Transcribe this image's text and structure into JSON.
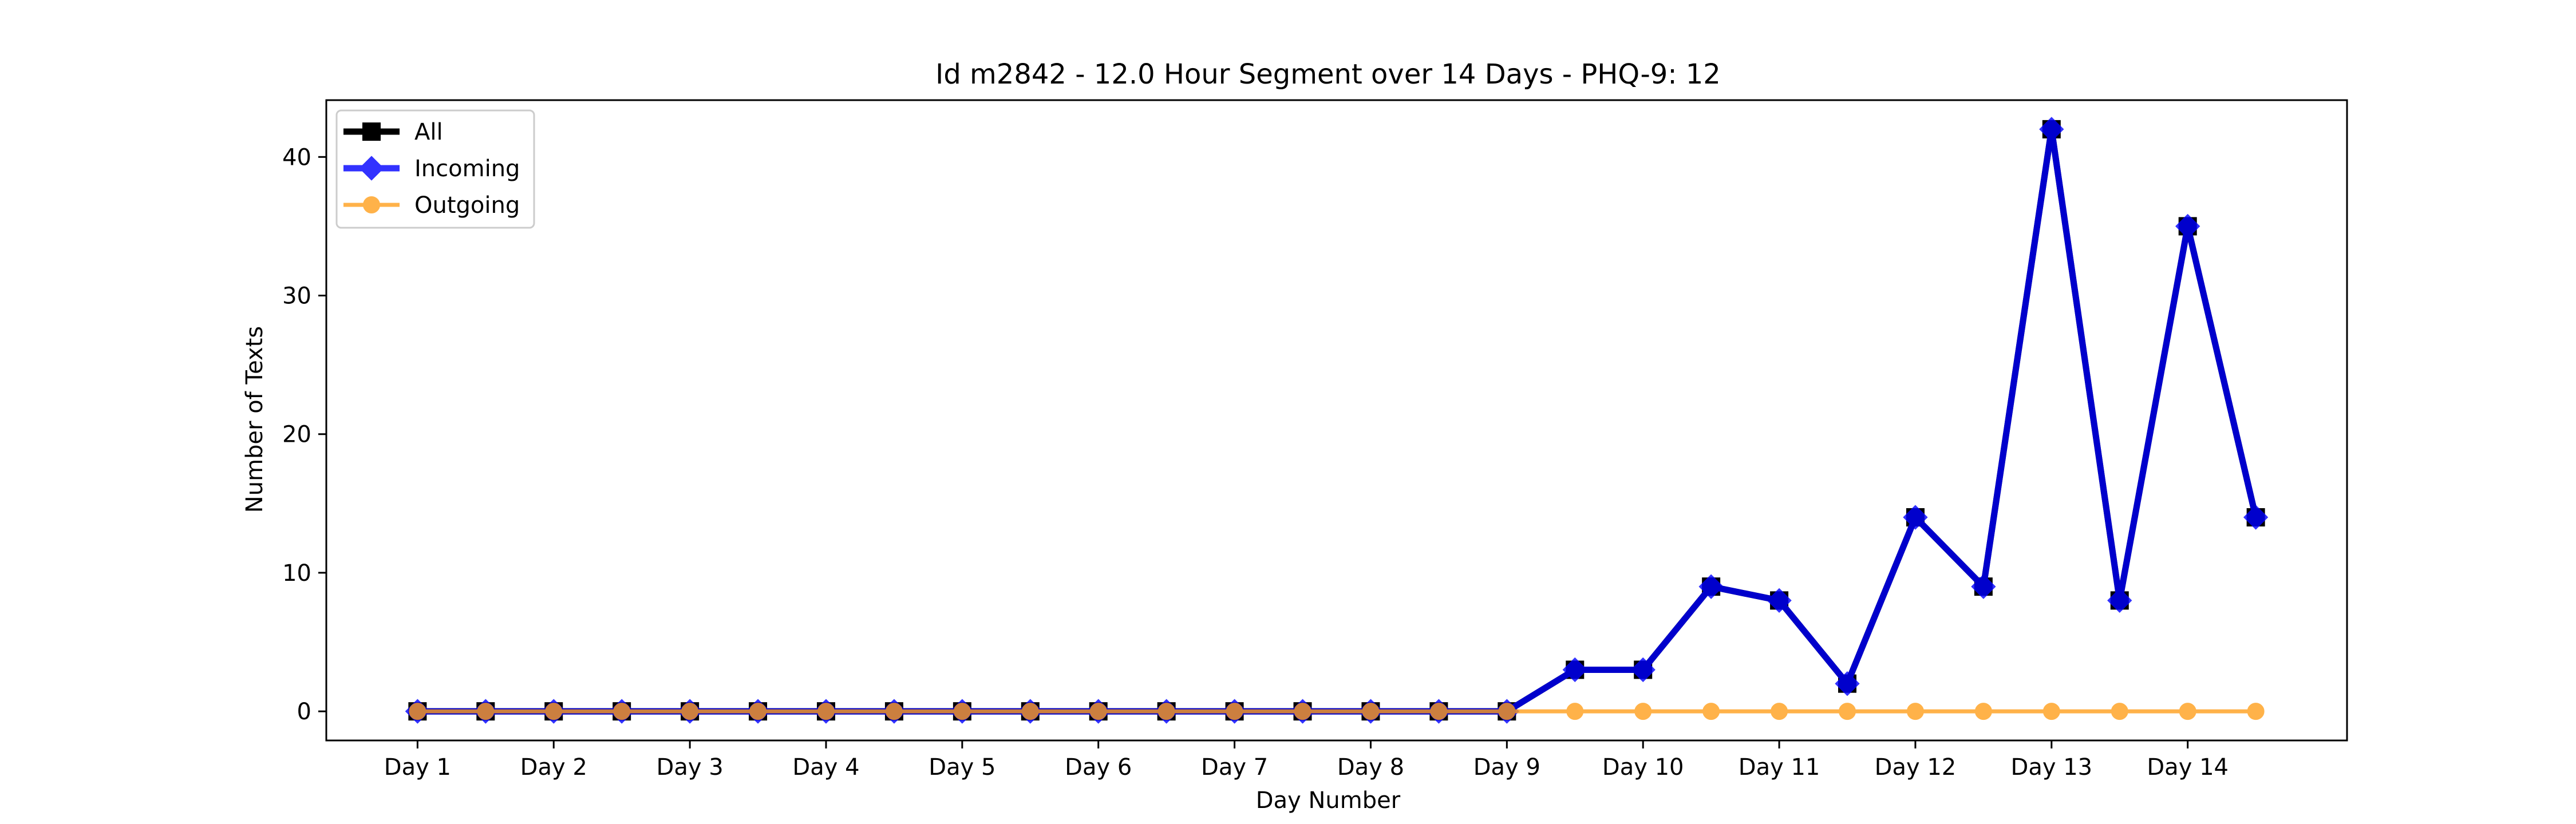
{
  "chart_data": {
    "type": "line",
    "title": "Id m2842 - 12.0 Hour Segment over 14 Days - PHQ-9: 12",
    "xlabel": "Day Number",
    "ylabel": "Number of Texts",
    "x": [
      1,
      1.5,
      2,
      2.5,
      3,
      3.5,
      4,
      4.5,
      5,
      5.5,
      6,
      6.5,
      7,
      7.5,
      8,
      8.5,
      9,
      9.5,
      10,
      10.5,
      11,
      11.5,
      12,
      12.5,
      13,
      13.5,
      14,
      14.5
    ],
    "xticks": [
      1,
      2,
      3,
      4,
      5,
      6,
      7,
      8,
      9,
      10,
      11,
      12,
      13,
      14
    ],
    "xtick_labels": [
      "Day 1",
      "Day 2",
      "Day 3",
      "Day 4",
      "Day 5",
      "Day 6",
      "Day 7",
      "Day 8",
      "Day 9",
      "Day 10",
      "Day 11",
      "Day 12",
      "Day 13",
      "Day 14"
    ],
    "yticks": [
      0,
      10,
      20,
      30,
      40
    ],
    "xlim": [
      0.33,
      15.17
    ],
    "ylim": [
      -2.1,
      44.1
    ],
    "grid": false,
    "legend_position": "top-left",
    "series": [
      {
        "name": "All",
        "color": "#000000",
        "marker": "square",
        "values": [
          0,
          0,
          0,
          0,
          0,
          0,
          0,
          0,
          0,
          0,
          0,
          0,
          0,
          0,
          0,
          0,
          0,
          3,
          3,
          9,
          8,
          2,
          14,
          9,
          42,
          8,
          35,
          14
        ]
      },
      {
        "name": "Incoming",
        "color": "#0000ff",
        "marker": "diamond",
        "values": [
          0,
          0,
          0,
          0,
          0,
          0,
          0,
          0,
          0,
          0,
          0,
          0,
          0,
          0,
          0,
          0,
          0,
          3,
          3,
          9,
          8,
          2,
          14,
          9,
          42,
          8,
          35,
          14
        ]
      },
      {
        "name": "Outgoing",
        "color": "#ff9f1c",
        "marker": "circle",
        "values": [
          0,
          0,
          0,
          0,
          0,
          0,
          0,
          0,
          0,
          0,
          0,
          0,
          0,
          0,
          0,
          0,
          0,
          0,
          0,
          0,
          0,
          0,
          0,
          0,
          0,
          0,
          0,
          0
        ]
      }
    ]
  }
}
